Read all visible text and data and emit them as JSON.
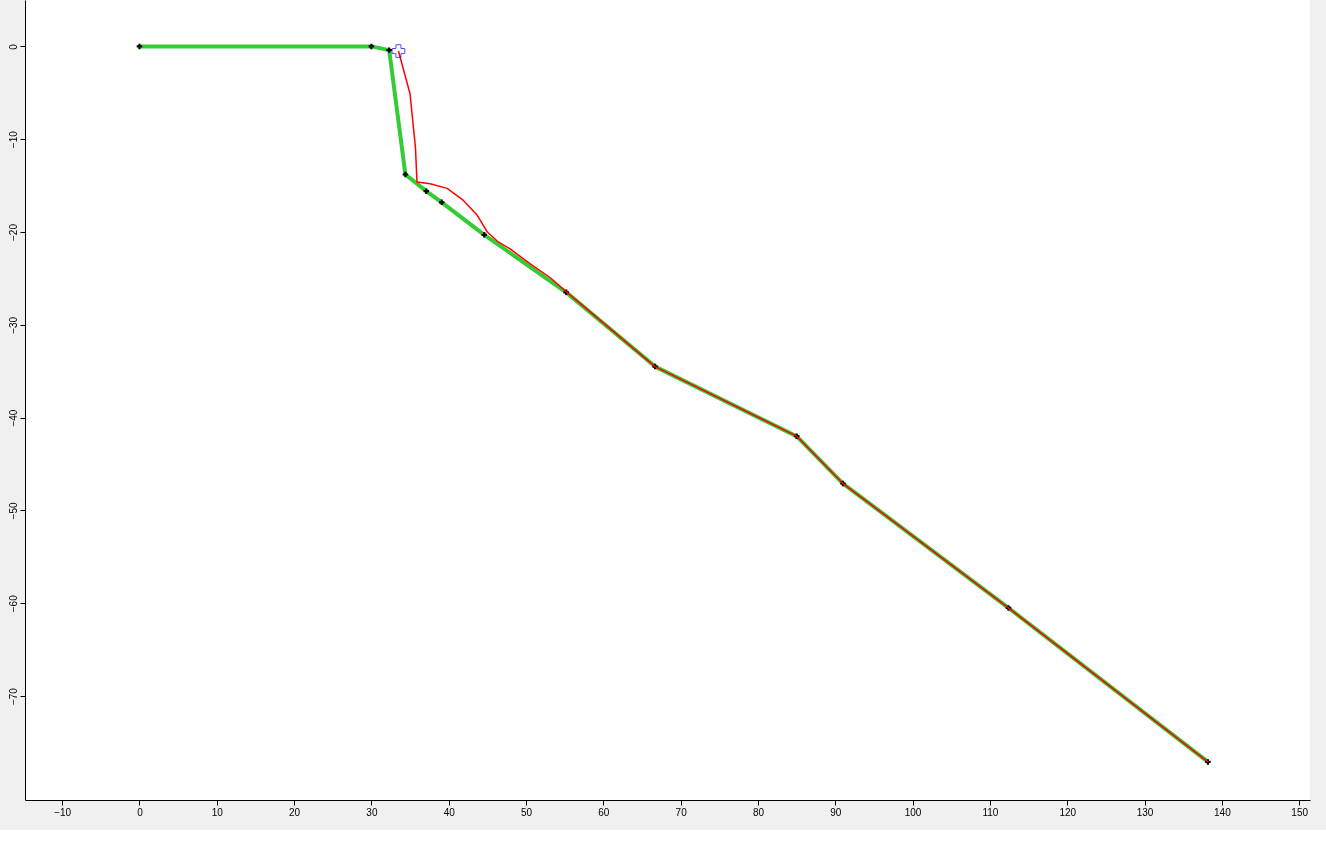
{
  "chart_data": {
    "type": "line",
    "xlim": [
      -14.8,
      151.4
    ],
    "ylim": [
      -81.2,
      5
    ],
    "xticks": [
      -10,
      0,
      10,
      20,
      30,
      40,
      50,
      60,
      70,
      80,
      90,
      100,
      110,
      120,
      130,
      140,
      150
    ],
    "yticks": [
      0,
      -10,
      -20,
      -30,
      -40,
      -50,
      -60,
      -70
    ],
    "grid": false,
    "line_style": "solid",
    "series": [
      {
        "color": "#33cc33",
        "marker": "cross",
        "x": [
          0,
          30.0,
          32.3,
          34.4,
          37.1,
          39.1,
          44.6,
          55.2,
          66.7,
          85.0,
          91.0,
          112.4,
          138.2
        ],
        "values": [
          0,
          0,
          -0.4,
          -13.8,
          -15.6,
          -16.8,
          -20.3,
          -26.5,
          -34.5,
          -42.0,
          -47.1,
          -60.5,
          -77.1
        ]
      },
      {
        "color": "#ff0000",
        "x": [
          33.5,
          35.0,
          35.7,
          35.9,
          37.6,
          39.8,
          41.9,
          43.7,
          45.0,
          46.3,
          47.9,
          50.5,
          53.1,
          55.3,
          66.7,
          85.0,
          91.0,
          112.4,
          138.2
        ],
        "values": [
          -0.5,
          -5.1,
          -10.9,
          -14.6,
          -14.8,
          -15.3,
          -16.6,
          -18.2,
          -20.0,
          -21.0,
          -21.8,
          -23.4,
          -24.9,
          -26.5,
          -34.5,
          -42.0,
          -47.1,
          -60.5,
          -77.1
        ]
      },
      {
        "type": "scatter",
        "marker": "cross",
        "color": "#0000ff",
        "x": [
          33.5
        ],
        "values": [
          -0.5
        ]
      }
    ]
  }
}
